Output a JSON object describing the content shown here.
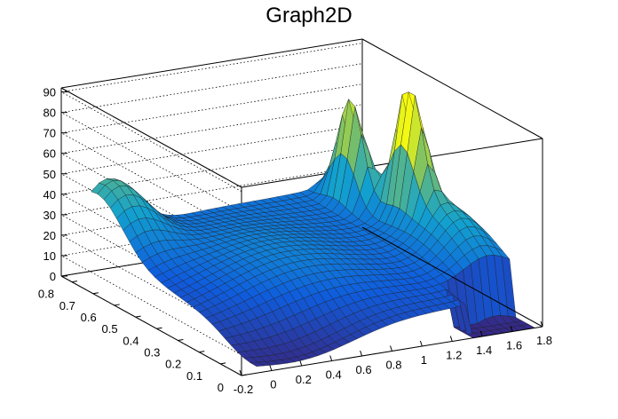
{
  "chart_data": {
    "type": "surface",
    "title": "Graph2D",
    "xlabel": "",
    "ylabel": "",
    "zlabel": "",
    "x_ticks": [
      "-0.2",
      "0",
      "0.2",
      "0.4",
      "0.6",
      "0.8",
      "1",
      "1.2",
      "1.4",
      "1.6",
      "1.8"
    ],
    "y_ticks": [
      "0",
      "0.1",
      "0.2",
      "0.3",
      "0.4",
      "0.5",
      "0.6",
      "0.7",
      "0.8"
    ],
    "z_ticks": [
      "0",
      "10",
      "20",
      "30",
      "40",
      "50",
      "60",
      "70",
      "80",
      "90"
    ],
    "xlim": [
      -0.2,
      1.8
    ],
    "ylim": [
      0,
      0.85
    ],
    "zlim": [
      0,
      92
    ],
    "colormap": "viridis-like",
    "grid": true
  }
}
